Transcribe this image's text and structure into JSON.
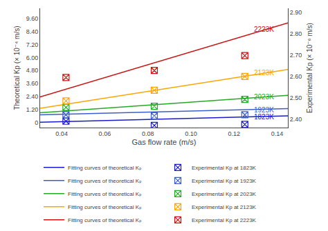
{
  "chart_data": {
    "type": "line",
    "xlabel": "Gas flow rate (m/s)",
    "ylabel": "Theoretical Kp (× 10⁻⁴ m/s)",
    "y2label": "Experimental Kp (× 10⁻⁶ m/s)",
    "xlim": [
      0.03,
      0.145
    ],
    "ylim": [
      -0.48,
      10.56
    ],
    "y2lim": [
      2.36,
      2.92
    ],
    "xticks": [
      0.04,
      0.06,
      0.08,
      {
        "value": 0.1,
        "label": "0.10"
      },
      0.12,
      0.14
    ],
    "yticks": [
      0,
      {
        "value": 1.2,
        "label": "1.20"
      },
      {
        "value": 2.4,
        "label": "2.40"
      },
      {
        "value": 3.6,
        "label": "3.60"
      },
      {
        "value": 4.8,
        "label": "4.80"
      },
      {
        "value": 6.0,
        "label": "6.00"
      },
      {
        "value": 7.2,
        "label": "7.20"
      },
      {
        "value": 8.4,
        "label": "8.40"
      },
      {
        "value": 9.6,
        "label": "9.60"
      }
    ],
    "y2ticks": [
      {
        "value": 2.4,
        "label": "2.40"
      },
      {
        "value": 2.5,
        "label": "2.50"
      },
      {
        "value": 2.6,
        "label": "2.60"
      },
      {
        "value": 2.7,
        "label": "2.70"
      },
      {
        "value": 2.8,
        "label": "2.80"
      },
      {
        "value": 2.9,
        "label": "2.90"
      }
    ],
    "grid": false,
    "legend": "bottom",
    "series": [
      {
        "name": "Fitting curves of theoretical Kₚ",
        "type": "line",
        "color": "#1a1acd",
        "x": [
          0.03,
          0.145
        ],
        "values": [
          0.02,
          0.6
        ]
      },
      {
        "name": "Fitting curves of theoretical Kₚ",
        "type": "line",
        "color": "#3a5fcd",
        "x": [
          0.03,
          0.145
        ],
        "values": [
          0.7,
          1.28
        ]
      },
      {
        "name": "Fitting curves of theoretical Kₚ",
        "type": "line",
        "color": "#22aa22",
        "x": [
          0.03,
          0.145
        ],
        "values": [
          0.9,
          2.5
        ]
      },
      {
        "name": "Fitting curves of theoretical Kₚ",
        "type": "line",
        "color": "#ffa500",
        "x": [
          0.03,
          0.145
        ],
        "values": [
          1.3,
          4.9
        ]
      },
      {
        "name": "Fitting curves of theoretical Kₚ",
        "type": "line",
        "color": "#cc1111",
        "x": [
          0.03,
          0.145
        ],
        "values": [
          2.35,
          9.2
        ]
      },
      {
        "name": "Experimental Kp at 1823K",
        "type": "scatter",
        "axis": "y2",
        "marker": "square-x",
        "color": "#1a1acd",
        "x": [
          0.042,
          0.083,
          0.125
        ],
        "values": [
          2.39,
          2.37,
          2.375
        ]
      },
      {
        "name": "Experimental Kp at 1923K",
        "type": "scatter",
        "axis": "y2",
        "marker": "square-x",
        "color": "#3a5fcd",
        "x": [
          0.042,
          0.083,
          0.125
        ],
        "values": [
          2.42,
          2.415,
          2.42
        ]
      },
      {
        "name": "Experimental Kp at 2023K",
        "type": "scatter",
        "axis": "y2",
        "marker": "square-x",
        "color": "#22aa22",
        "x": [
          0.042,
          0.083,
          0.125
        ],
        "values": [
          2.455,
          2.46,
          2.492
        ]
      },
      {
        "name": "Experimental Kp at 2123K",
        "type": "scatter",
        "axis": "y2",
        "marker": "square-x",
        "color": "#ffa500",
        "x": [
          0.042,
          0.083,
          0.125
        ],
        "values": [
          2.485,
          2.535,
          2.6
        ]
      },
      {
        "name": "Experimental Kp at 2223K",
        "type": "scatter",
        "axis": "y2",
        "marker": "square-x",
        "color": "#cc1111",
        "x": [
          0.042,
          0.083,
          0.125
        ],
        "values": [
          2.595,
          2.628,
          2.698
        ]
      }
    ],
    "annotations": [
      {
        "text": "1823K",
        "x": 0.1285,
        "y": 0.52,
        "color": "#1a1acd"
      },
      {
        "text": "1923K",
        "x": 0.1285,
        "y": 1.15,
        "color": "#3a5fcd"
      },
      {
        "text": "2023K",
        "x": 0.1285,
        "y": 2.35,
        "color": "#22aa22"
      },
      {
        "text": "2123K",
        "x": 0.1285,
        "y": 4.6,
        "color": "#ffa500"
      },
      {
        "text": "2223K",
        "x": 0.1285,
        "y": 8.6,
        "color": "#cc1111"
      }
    ]
  }
}
